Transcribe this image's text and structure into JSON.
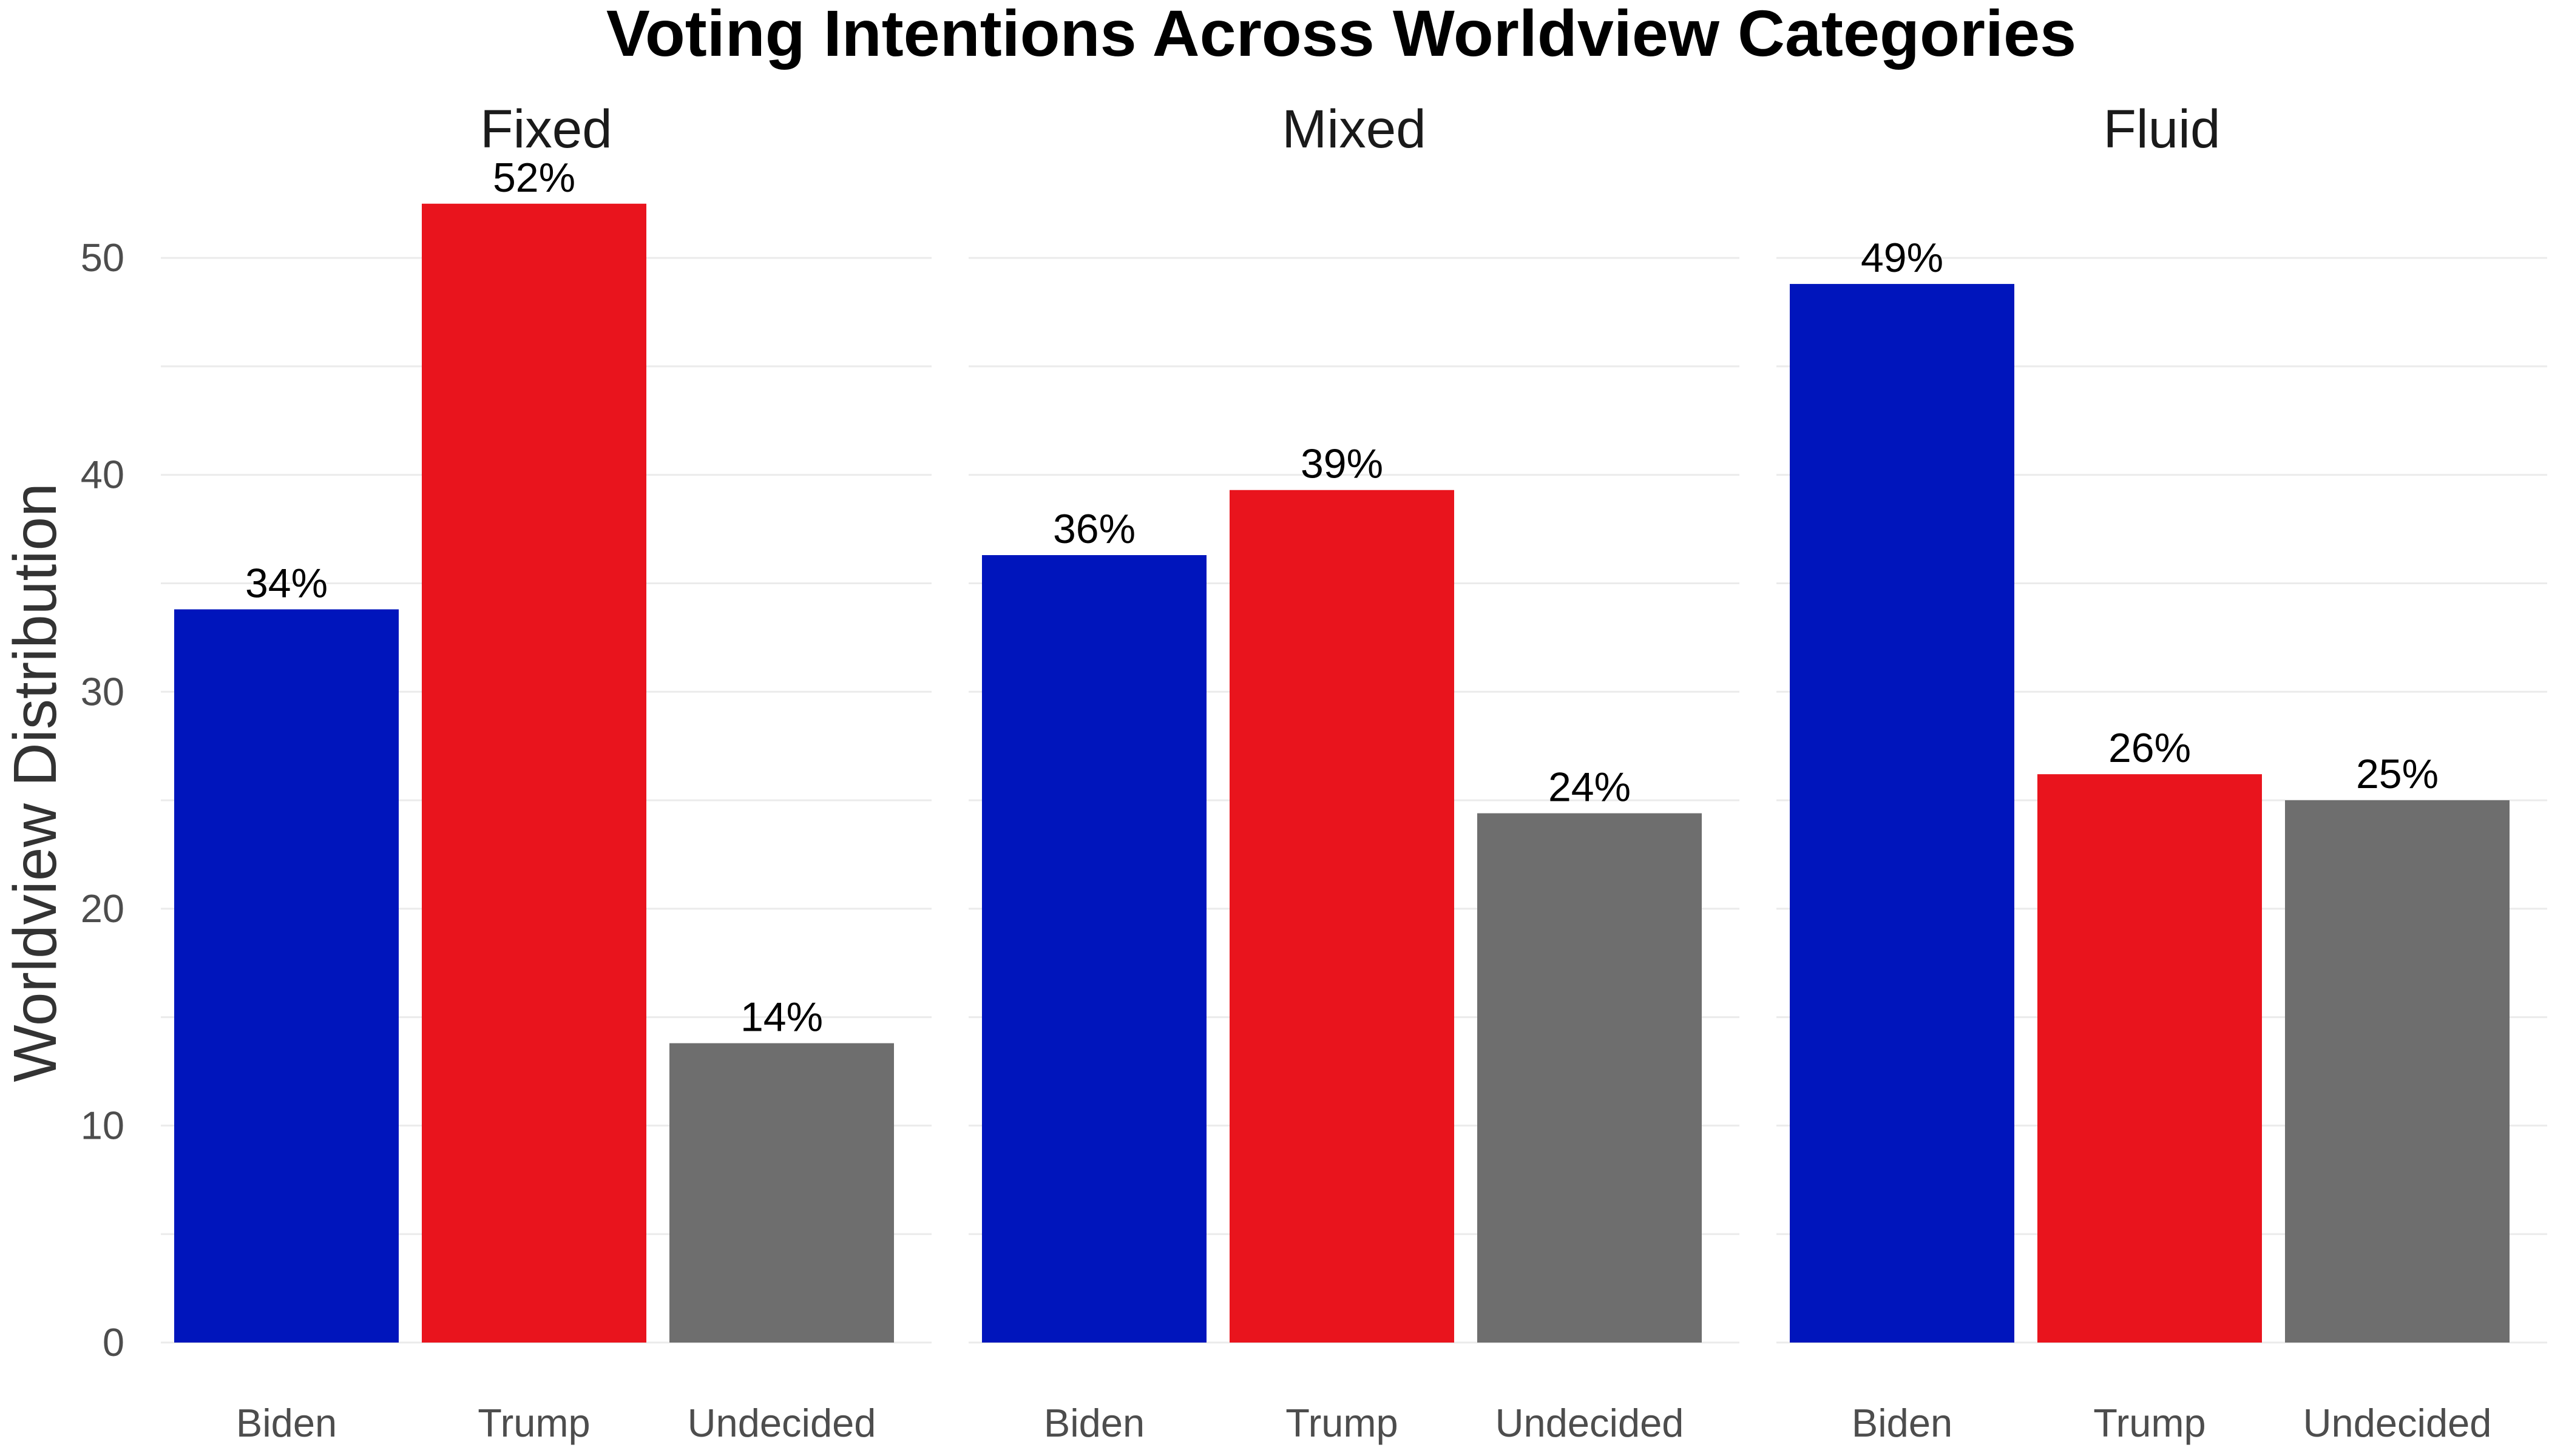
{
  "chart_data": {
    "type": "bar",
    "title": "Voting Intentions Across Worldview Categories",
    "ylabel": "Worldview Distribution",
    "xlabel": "",
    "ylim": [
      0,
      53.5
    ],
    "yticks": [
      0,
      10,
      20,
      30,
      40,
      50
    ],
    "grid": true,
    "legend": "none",
    "categories": [
      "Biden",
      "Trump",
      "Undecided"
    ],
    "colors": {
      "Biden": "#0015BC",
      "Trump": "#E9141D",
      "Undecided": "#6E6E6E"
    },
    "panels": [
      {
        "name": "Fixed",
        "values": [
          33.8,
          52.5,
          13.8
        ],
        "labels": [
          "34%",
          "52%",
          "14%"
        ]
      },
      {
        "name": "Mixed",
        "values": [
          36.3,
          39.3,
          24.4
        ],
        "labels": [
          "36%",
          "39%",
          "24%"
        ]
      },
      {
        "name": "Fluid",
        "values": [
          48.8,
          26.2,
          25.0
        ],
        "labels": [
          "49%",
          "26%",
          "25%"
        ]
      }
    ]
  }
}
